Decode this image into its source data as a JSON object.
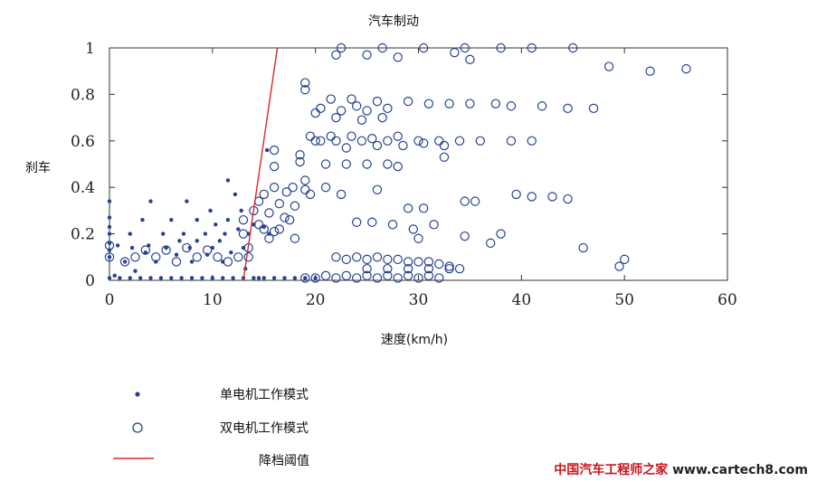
{
  "chart_data": {
    "type": "scatter",
    "title": "汽车制动",
    "xlabel": "速度(km/h)",
    "ylabel": "刹车",
    "xlim": [
      0,
      60
    ],
    "ylim": [
      0,
      1
    ],
    "xticks": [
      "0",
      "10",
      "20",
      "30",
      "40",
      "50",
      "60"
    ],
    "yticks": [
      "0",
      "0.2",
      "0.4",
      "0.6",
      "0.8",
      "1"
    ],
    "grid": false,
    "legend_position": "bottom-left",
    "series": [
      {
        "name": "单电机工作模式",
        "marker": "dot",
        "color": "#27418f",
        "points": [
          [
            0,
            0.34
          ],
          [
            0,
            0.27
          ],
          [
            0,
            0.23
          ],
          [
            0,
            0.2
          ],
          [
            0,
            0.16
          ],
          [
            0,
            0.13
          ],
          [
            0,
            0.1
          ],
          [
            0,
            0.01
          ],
          [
            0.5,
            0.02
          ],
          [
            0.8,
            0.15
          ],
          [
            1,
            0.01
          ],
          [
            1.5,
            0.08
          ],
          [
            2,
            0.01
          ],
          [
            2,
            0.2
          ],
          [
            2.2,
            0.14
          ],
          [
            2.5,
            0.04
          ],
          [
            3,
            0.01
          ],
          [
            3.2,
            0.26
          ],
          [
            3.5,
            0.12
          ],
          [
            3.8,
            0.15
          ],
          [
            4,
            0.34
          ],
          [
            4,
            0.01
          ],
          [
            4.5,
            0.08
          ],
          [
            5,
            0.01
          ],
          [
            5.2,
            0.2
          ],
          [
            5.5,
            0.14
          ],
          [
            6,
            0.01
          ],
          [
            6,
            0.26
          ],
          [
            6.5,
            0.11
          ],
          [
            6.8,
            0.17
          ],
          [
            7,
            0.01
          ],
          [
            7.2,
            0.2
          ],
          [
            7.5,
            0.34
          ],
          [
            7.8,
            0.14
          ],
          [
            8,
            0.01
          ],
          [
            8,
            0.08
          ],
          [
            8.5,
            0.26
          ],
          [
            8.5,
            0.17
          ],
          [
            9,
            0.01
          ],
          [
            9.3,
            0.2
          ],
          [
            9.5,
            0.11
          ],
          [
            9.8,
            0.3
          ],
          [
            10,
            0.01
          ],
          [
            10,
            0.14
          ],
          [
            10.3,
            0.24
          ],
          [
            10.7,
            0.17
          ],
          [
            11,
            0.01
          ],
          [
            11,
            0.08
          ],
          [
            11.2,
            0.2
          ],
          [
            11.5,
            0.43
          ],
          [
            11.5,
            0.26
          ],
          [
            11.8,
            0.12
          ],
          [
            12,
            0.01
          ],
          [
            12.2,
            0.37
          ],
          [
            12.5,
            0.22
          ],
          [
            12.8,
            0.3
          ],
          [
            13,
            0.01
          ],
          [
            13,
            0.14
          ],
          [
            13.2,
            0.05
          ],
          [
            13.5,
            0.2
          ],
          [
            14,
            0.01
          ],
          [
            14,
            0.24
          ],
          [
            14.5,
            0.01
          ],
          [
            15,
            0.01
          ],
          [
            15,
            0.23
          ],
          [
            15.5,
            0.2
          ],
          [
            15.3,
            0.56
          ],
          [
            16,
            0.01
          ],
          [
            17,
            0.01
          ],
          [
            18,
            0.01
          ],
          [
            19,
            0.01
          ],
          [
            20,
            0.01
          ]
        ]
      },
      {
        "name": "双电机工作模式",
        "marker": "circle",
        "color": "#27418f",
        "points": [
          [
            0,
            0.15
          ],
          [
            0,
            0.1
          ],
          [
            1.5,
            0.08
          ],
          [
            2.5,
            0.1
          ],
          [
            3.5,
            0.13
          ],
          [
            4.5,
            0.1
          ],
          [
            5.5,
            0.13
          ],
          [
            6.5,
            0.08
          ],
          [
            7.5,
            0.14
          ],
          [
            8.5,
            0.1
          ],
          [
            9.5,
            0.13
          ],
          [
            10.5,
            0.1
          ],
          [
            11.5,
            0.08
          ],
          [
            12.5,
            0.1
          ],
          [
            13,
            0.26
          ],
          [
            13,
            0.2
          ],
          [
            13.5,
            0.14
          ],
          [
            13.5,
            0.1
          ],
          [
            14,
            0.3
          ],
          [
            14.5,
            0.34
          ],
          [
            14.5,
            0.24
          ],
          [
            15,
            0.37
          ],
          [
            15,
            0.22
          ],
          [
            15.5,
            0.29
          ],
          [
            15.5,
            0.18
          ],
          [
            16,
            0.56
          ],
          [
            16,
            0.49
          ],
          [
            16,
            0.4
          ],
          [
            16,
            0.21
          ],
          [
            16.5,
            0.33
          ],
          [
            16.5,
            0.22
          ],
          [
            17,
            0.27
          ],
          [
            17.2,
            0.38
          ],
          [
            17.5,
            0.26
          ],
          [
            17.8,
            0.4
          ],
          [
            18,
            0.32
          ],
          [
            18,
            0.18
          ],
          [
            18.5,
            0.54
          ],
          [
            18.5,
            0.51
          ],
          [
            19,
            0.85
          ],
          [
            19,
            0.82
          ],
          [
            19,
            0.43
          ],
          [
            19,
            0.39
          ],
          [
            19.5,
            0.62
          ],
          [
            19.5,
            0.37
          ],
          [
            20,
            0.72
          ],
          [
            20,
            0.6
          ],
          [
            20.5,
            0.74
          ],
          [
            20.5,
            0.6
          ],
          [
            21,
            0.5
          ],
          [
            21,
            0.4
          ],
          [
            21.5,
            0.78
          ],
          [
            21.5,
            0.62
          ],
          [
            22,
            0.97
          ],
          [
            22,
            0.7
          ],
          [
            22,
            0.6
          ],
          [
            22.5,
            0.73
          ],
          [
            22.5,
            0.37
          ],
          [
            23,
            0.57
          ],
          [
            23,
            0.5
          ],
          [
            23.5,
            0.78
          ],
          [
            23.5,
            0.62
          ],
          [
            24,
            0.75
          ],
          [
            24,
            0.25
          ],
          [
            24.5,
            0.69
          ],
          [
            24.5,
            0.6
          ],
          [
            25,
            0.73
          ],
          [
            25,
            0.5
          ],
          [
            25.5,
            0.61
          ],
          [
            25.5,
            0.25
          ],
          [
            26,
            0.77
          ],
          [
            26,
            0.58
          ],
          [
            26,
            0.39
          ],
          [
            26.5,
            0.7
          ],
          [
            27,
            0.74
          ],
          [
            27,
            0.6
          ],
          [
            27,
            0.5
          ],
          [
            27.5,
            0.24
          ],
          [
            28,
            0.62
          ],
          [
            28,
            0.49
          ],
          [
            28.5,
            0.58
          ],
          [
            29,
            0.77
          ],
          [
            29,
            0.31
          ],
          [
            29.5,
            0.22
          ],
          [
            30,
            0.6
          ],
          [
            30,
            0.18
          ],
          [
            30.5,
            0.59
          ],
          [
            30.5,
            0.31
          ],
          [
            31,
            0.76
          ],
          [
            31.5,
            0.24
          ],
          [
            32,
            0.6
          ],
          [
            32.5,
            0.58
          ],
          [
            32.5,
            0.53
          ],
          [
            33,
            0.76
          ],
          [
            34,
            0.6
          ],
          [
            34.5,
            0.34
          ],
          [
            34.5,
            0.19
          ],
          [
            35,
            0.76
          ],
          [
            35.5,
            0.34
          ],
          [
            36,
            0.6
          ],
          [
            37,
            0.16
          ],
          [
            37.5,
            0.76
          ],
          [
            38,
            0.2
          ],
          [
            39,
            0.6
          ],
          [
            39,
            0.75
          ],
          [
            39.5,
            0.37
          ],
          [
            41,
            0.6
          ],
          [
            41,
            0.36
          ],
          [
            42,
            0.75
          ],
          [
            43,
            0.36
          ],
          [
            44.5,
            0.74
          ],
          [
            44.5,
            0.35
          ],
          [
            46,
            0.14
          ],
          [
            47,
            0.74
          ],
          [
            49.5,
            0.06
          ],
          [
            50,
            0.09
          ],
          [
            22.5,
            1.0
          ],
          [
            26.5,
            1.0
          ],
          [
            30.5,
            1.0
          ],
          [
            34.5,
            1.0
          ],
          [
            38,
            1.0
          ],
          [
            41,
            1.0
          ],
          [
            45,
            1.0
          ],
          [
            25,
            0.97
          ],
          [
            28,
            0.96
          ],
          [
            33.5,
            0.98
          ],
          [
            35,
            0.95
          ],
          [
            48.5,
            0.92
          ],
          [
            52.5,
            0.9
          ],
          [
            56,
            0.91
          ],
          [
            19,
            0.01
          ],
          [
            20,
            0.01
          ],
          [
            21,
            0.02
          ],
          [
            22,
            0.01
          ],
          [
            23,
            0.02
          ],
          [
            24,
            0.01
          ],
          [
            25,
            0.02
          ],
          [
            26,
            0.01
          ],
          [
            27,
            0.02
          ],
          [
            28,
            0.01
          ],
          [
            29,
            0.02
          ],
          [
            30,
            0.01
          ],
          [
            31,
            0.02
          ],
          [
            32,
            0.01
          ],
          [
            22,
            0.1
          ],
          [
            23,
            0.09
          ],
          [
            24,
            0.1
          ],
          [
            25,
            0.09
          ],
          [
            26,
            0.1
          ],
          [
            27,
            0.09
          ],
          [
            28,
            0.09
          ],
          [
            29,
            0.08
          ],
          [
            30,
            0.08
          ],
          [
            31,
            0.08
          ],
          [
            32,
            0.07
          ],
          [
            33,
            0.06
          ],
          [
            34,
            0.05
          ],
          [
            25,
            0.05
          ],
          [
            27,
            0.05
          ],
          [
            29,
            0.05
          ],
          [
            31,
            0.05
          ],
          [
            33,
            0.05
          ]
        ]
      },
      {
        "name": "降档阈值",
        "marker": "line",
        "color": "#d62a2a",
        "points": [
          [
            13,
            0
          ],
          [
            16.3,
            1
          ]
        ]
      }
    ]
  },
  "watermark": {
    "prefix": "中国汽车工程师之家",
    "domain": "www.cartech8.com"
  }
}
